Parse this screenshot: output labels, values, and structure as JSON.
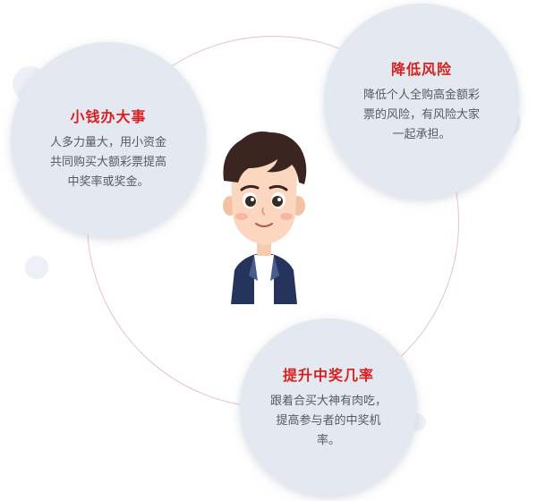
{
  "features": [
    {
      "title": "小钱办大事",
      "lines": [
        "人多力量大，用小资金",
        "共同购买大额彩票提高",
        "中奖率或奖金。"
      ]
    },
    {
      "title": "降低风险",
      "lines": [
        "降低个人全购高金额彩",
        "票的风险，有风险大家",
        "一起承担。"
      ]
    },
    {
      "title": "提升中奖几率",
      "lines": [
        "跟着合买大神有肉吃，",
        "提高参与者的中奖机",
        "率。"
      ]
    }
  ],
  "icons": {
    "avatar": "cartoon-boy-avatar"
  },
  "colors": {
    "title": "#d8211f",
    "text": "#555a63",
    "bubble": "#e3e8f1",
    "ring": "#e6c3c3"
  }
}
